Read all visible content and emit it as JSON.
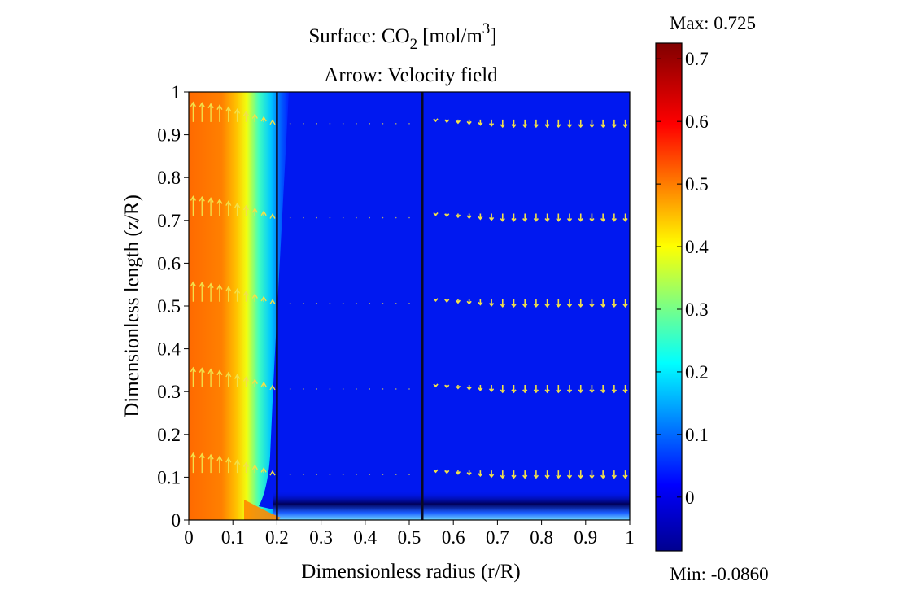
{
  "chart_data": {
    "type": "heatmap",
    "title": {
      "surface_prefix": "Surface: CO",
      "surface_subscript": "2",
      "surface_units_prefix": "[mol/m",
      "surface_units_superscript": "3",
      "surface_units_suffix": "]",
      "arrow": "Arrow: Velocity field"
    },
    "xlabel": "Dimensionless radius (r/R)",
    "ylabel": "Dimensionless length (z/R)",
    "xlim": [
      0,
      1
    ],
    "ylim": [
      0,
      1
    ],
    "x_ticks": [
      "0",
      "0.1",
      "0.2",
      "0.3",
      "0.4",
      "0.5",
      "0.6",
      "0.7",
      "0.8",
      "0.9",
      "1"
    ],
    "y_ticks": [
      "0",
      "0.1",
      "0.2",
      "0.3",
      "0.4",
      "0.5",
      "0.6",
      "0.7",
      "0.8",
      "0.9",
      "1"
    ],
    "region_boundaries_r": [
      0.2,
      0.53
    ],
    "field": {
      "quantity": "CO2 concentration",
      "description_values": {
        "fiber_lumen_near_axis": 0.6,
        "membrane_and_shell": 0.0,
        "bottom_edge_min_region": -0.086
      }
    },
    "colorbar": {
      "max_label": "Max: 0.725",
      "min_label": "Min: -0.0860",
      "max": 0.725,
      "min": -0.086,
      "ticks": [
        "0.7",
        "0.6",
        "0.5",
        "0.4",
        "0.3",
        "0.2",
        "0.1",
        "0"
      ],
      "colormap": [
        "#00008f",
        "#0000ff",
        "#00ffff",
        "#ffff00",
        "#ff0000",
        "#800000"
      ]
    },
    "arrows": {
      "color": "#f2e04a",
      "rows_z": [
        0.93,
        0.71,
        0.51,
        0.31,
        0.11
      ],
      "lumen_upward": {
        "r_start": 0.01,
        "r_end": 0.19,
        "count": 10
      },
      "shell_downward": {
        "r_start": 0.56,
        "r_end": 0.99,
        "count": 18
      }
    }
  }
}
